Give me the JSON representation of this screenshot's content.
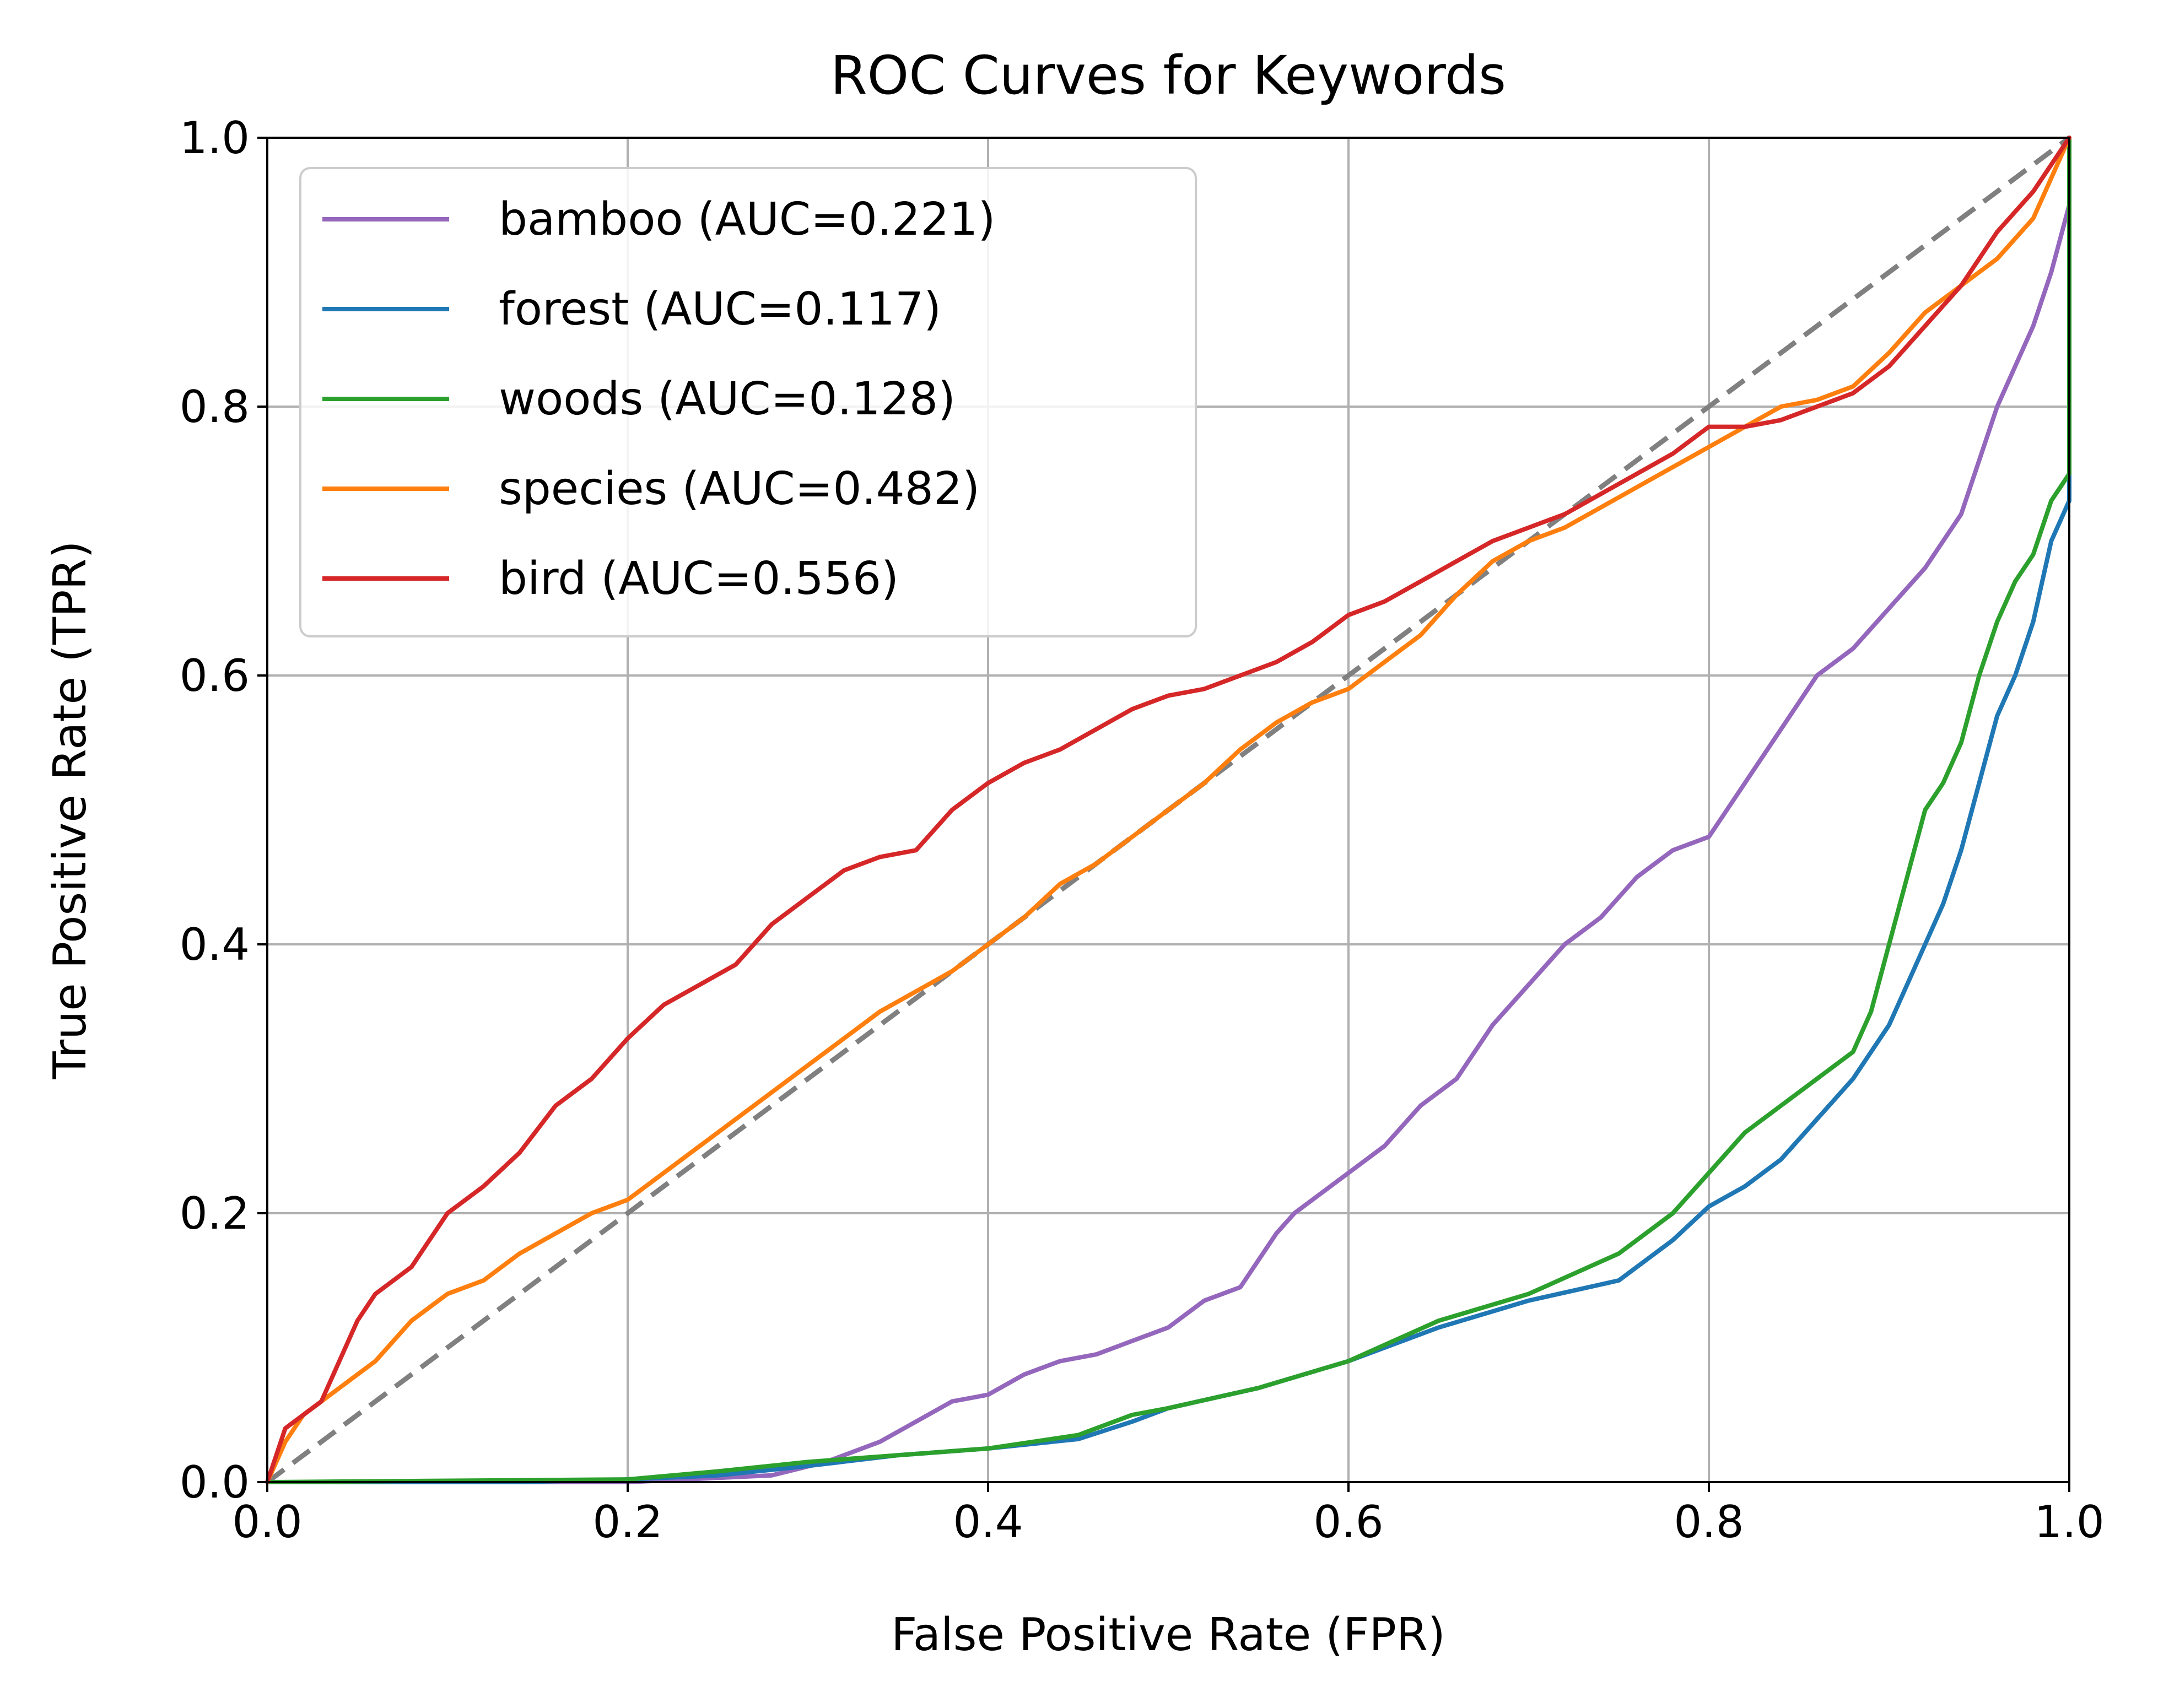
{
  "chart_data": {
    "type": "line",
    "title": "ROC Curves for Keywords",
    "xlabel": "False Positive Rate (FPR)",
    "ylabel": "True Positive Rate (TPR)",
    "xlim": [
      0.0,
      1.0
    ],
    "ylim": [
      0.0,
      1.0
    ],
    "xticks": [
      "0.0",
      "0.2",
      "0.4",
      "0.6",
      "0.8",
      "1.0"
    ],
    "yticks": [
      "0.0",
      "0.2",
      "0.4",
      "0.6",
      "0.8",
      "1.0"
    ],
    "grid": true,
    "legend_position": "upper-left",
    "reference_line": {
      "x": [
        0,
        1
      ],
      "y": [
        0,
        1
      ],
      "color": "#808080",
      "style": "dashed"
    },
    "series": [
      {
        "name": "bamboo (AUC=0.221)",
        "color": "#9467bd",
        "x": [
          0.0,
          0.2,
          0.28,
          0.31,
          0.34,
          0.36,
          0.38,
          0.4,
          0.42,
          0.44,
          0.46,
          0.48,
          0.5,
          0.52,
          0.54,
          0.55,
          0.56,
          0.57,
          0.58,
          0.59,
          0.6,
          0.62,
          0.64,
          0.66,
          0.67,
          0.68,
          0.7,
          0.72,
          0.74,
          0.76,
          0.78,
          0.8,
          0.82,
          0.84,
          0.86,
          0.88,
          0.9,
          0.92,
          0.94,
          0.95,
          0.96,
          0.97,
          0.98,
          0.99,
          1.0
        ],
        "y": [
          0.0,
          0.0,
          0.005,
          0.015,
          0.03,
          0.045,
          0.06,
          0.065,
          0.08,
          0.09,
          0.095,
          0.105,
          0.115,
          0.135,
          0.145,
          0.165,
          0.185,
          0.2,
          0.21,
          0.22,
          0.23,
          0.25,
          0.28,
          0.3,
          0.32,
          0.34,
          0.37,
          0.4,
          0.42,
          0.45,
          0.47,
          0.48,
          0.52,
          0.56,
          0.6,
          0.62,
          0.65,
          0.68,
          0.72,
          0.76,
          0.8,
          0.83,
          0.86,
          0.9,
          0.95
        ]
      },
      {
        "name": "forest (AUC=0.117)",
        "color": "#1f77b4",
        "x": [
          0.0,
          0.14,
          0.2,
          0.25,
          0.3,
          0.35,
          0.4,
          0.45,
          0.48,
          0.5,
          0.55,
          0.6,
          0.65,
          0.7,
          0.75,
          0.78,
          0.8,
          0.82,
          0.84,
          0.86,
          0.88,
          0.9,
          0.91,
          0.92,
          0.93,
          0.94,
          0.95,
          0.96,
          0.97,
          0.98,
          0.99,
          1.0,
          1.0
        ],
        "y": [
          0.0,
          0.0,
          0.002,
          0.005,
          0.012,
          0.02,
          0.025,
          0.032,
          0.045,
          0.055,
          0.07,
          0.09,
          0.115,
          0.135,
          0.15,
          0.18,
          0.205,
          0.22,
          0.24,
          0.27,
          0.3,
          0.34,
          0.37,
          0.4,
          0.43,
          0.47,
          0.52,
          0.57,
          0.6,
          0.64,
          0.7,
          0.73,
          1.0
        ]
      },
      {
        "name": "woods (AUC=0.128)",
        "color": "#2ca02c",
        "x": [
          0.0,
          0.2,
          0.25,
          0.3,
          0.35,
          0.4,
          0.45,
          0.48,
          0.5,
          0.55,
          0.6,
          0.65,
          0.7,
          0.75,
          0.78,
          0.8,
          0.82,
          0.84,
          0.86,
          0.88,
          0.89,
          0.9,
          0.91,
          0.92,
          0.93,
          0.94,
          0.95,
          0.96,
          0.97,
          0.98,
          0.99,
          1.0,
          1.0
        ],
        "y": [
          0.0,
          0.002,
          0.008,
          0.015,
          0.02,
          0.025,
          0.035,
          0.05,
          0.055,
          0.07,
          0.09,
          0.12,
          0.14,
          0.17,
          0.2,
          0.23,
          0.26,
          0.28,
          0.3,
          0.32,
          0.35,
          0.4,
          0.45,
          0.5,
          0.52,
          0.55,
          0.6,
          0.64,
          0.67,
          0.69,
          0.73,
          0.75,
          1.0
        ]
      },
      {
        "name": "species (AUC=0.482)",
        "color": "#ff7f0e",
        "x": [
          0.0,
          0.01,
          0.02,
          0.04,
          0.06,
          0.08,
          0.1,
          0.12,
          0.14,
          0.16,
          0.18,
          0.2,
          0.22,
          0.24,
          0.26,
          0.28,
          0.3,
          0.32,
          0.34,
          0.36,
          0.38,
          0.4,
          0.42,
          0.44,
          0.46,
          0.48,
          0.5,
          0.52,
          0.54,
          0.56,
          0.58,
          0.6,
          0.62,
          0.64,
          0.66,
          0.68,
          0.7,
          0.72,
          0.74,
          0.76,
          0.78,
          0.8,
          0.82,
          0.84,
          0.86,
          0.88,
          0.9,
          0.92,
          0.94,
          0.96,
          0.98,
          1.0
        ],
        "y": [
          0.0,
          0.03,
          0.05,
          0.07,
          0.09,
          0.12,
          0.14,
          0.15,
          0.17,
          0.185,
          0.2,
          0.21,
          0.23,
          0.25,
          0.27,
          0.29,
          0.31,
          0.33,
          0.35,
          0.365,
          0.38,
          0.4,
          0.42,
          0.445,
          0.46,
          0.48,
          0.5,
          0.52,
          0.545,
          0.565,
          0.58,
          0.59,
          0.61,
          0.63,
          0.66,
          0.685,
          0.7,
          0.71,
          0.725,
          0.74,
          0.755,
          0.77,
          0.785,
          0.8,
          0.805,
          0.815,
          0.84,
          0.87,
          0.89,
          0.91,
          0.94,
          1.0
        ]
      },
      {
        "name": "bird (AUC=0.556)",
        "color": "#d62728",
        "x": [
          0.0,
          0.005,
          0.01,
          0.02,
          0.03,
          0.04,
          0.05,
          0.06,
          0.08,
          0.1,
          0.12,
          0.14,
          0.16,
          0.18,
          0.2,
          0.22,
          0.24,
          0.26,
          0.28,
          0.3,
          0.32,
          0.34,
          0.36,
          0.38,
          0.4,
          0.42,
          0.44,
          0.46,
          0.48,
          0.5,
          0.52,
          0.54,
          0.56,
          0.58,
          0.6,
          0.62,
          0.64,
          0.66,
          0.68,
          0.7,
          0.72,
          0.74,
          0.76,
          0.78,
          0.8,
          0.82,
          0.84,
          0.86,
          0.88,
          0.9,
          0.92,
          0.94,
          0.96,
          0.98,
          1.0
        ],
        "y": [
          0.0,
          0.02,
          0.04,
          0.05,
          0.06,
          0.09,
          0.12,
          0.14,
          0.16,
          0.2,
          0.22,
          0.245,
          0.28,
          0.3,
          0.33,
          0.355,
          0.37,
          0.385,
          0.415,
          0.435,
          0.455,
          0.465,
          0.47,
          0.5,
          0.52,
          0.535,
          0.545,
          0.56,
          0.575,
          0.585,
          0.59,
          0.6,
          0.61,
          0.625,
          0.645,
          0.655,
          0.67,
          0.685,
          0.7,
          0.71,
          0.72,
          0.735,
          0.75,
          0.765,
          0.785,
          0.785,
          0.79,
          0.8,
          0.81,
          0.83,
          0.86,
          0.89,
          0.93,
          0.96,
          1.0
        ]
      }
    ]
  }
}
